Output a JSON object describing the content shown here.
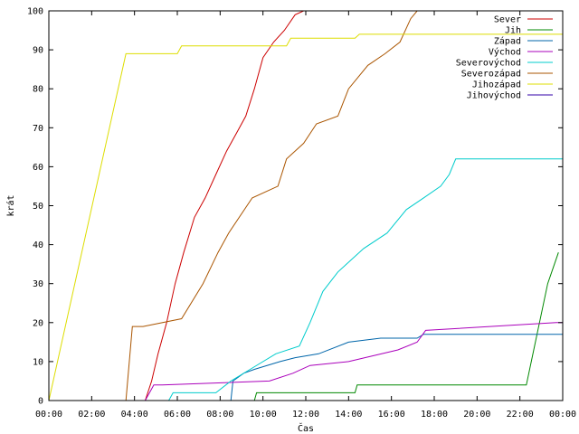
{
  "chart_data": {
    "type": "line",
    "xlabel": "Čas",
    "ylabel": "krát",
    "xlim": [
      0,
      24
    ],
    "ylim": [
      0,
      100
    ],
    "grid": false,
    "legend_position": "top-right",
    "x_ticks": [
      {
        "value": 0,
        "label": "00:00"
      },
      {
        "value": 2,
        "label": "02:00"
      },
      {
        "value": 4,
        "label": "04:00"
      },
      {
        "value": 6,
        "label": "06:00"
      },
      {
        "value": 8,
        "label": "08:00"
      },
      {
        "value": 10,
        "label": "10:00"
      },
      {
        "value": 12,
        "label": "12:00"
      },
      {
        "value": 14,
        "label": "14:00"
      },
      {
        "value": 16,
        "label": "16:00"
      },
      {
        "value": 18,
        "label": "18:00"
      },
      {
        "value": 20,
        "label": "20:00"
      },
      {
        "value": 22,
        "label": "22:00"
      },
      {
        "value": 24,
        "label": "00:00"
      }
    ],
    "y_ticks": [
      {
        "value": 0,
        "label": "0"
      },
      {
        "value": 10,
        "label": "10"
      },
      {
        "value": 20,
        "label": "20"
      },
      {
        "value": 30,
        "label": "30"
      },
      {
        "value": 40,
        "label": "40"
      },
      {
        "value": 50,
        "label": "50"
      },
      {
        "value": 60,
        "label": "60"
      },
      {
        "value": 70,
        "label": "70"
      },
      {
        "value": 80,
        "label": "80"
      },
      {
        "value": 90,
        "label": "90"
      },
      {
        "value": 100,
        "label": "100"
      }
    ],
    "series": [
      {
        "name": "Sever",
        "color": "#cc0000",
        "x": [
          4.5,
          4.8,
          5.1,
          5.5,
          5.9,
          6.3,
          6.8,
          7.3,
          7.8,
          8.3,
          8.8,
          9.2,
          9.6,
          10.0,
          10.5,
          11.0,
          11.5,
          11.9
        ],
        "y": [
          0,
          5,
          12,
          20,
          30,
          38,
          47,
          52,
          58,
          64,
          69,
          73,
          80,
          88,
          92,
          95,
          99,
          100
        ]
      },
      {
        "name": "Jih",
        "color": "#008800",
        "x": [
          9.6,
          9.7,
          14.3,
          14.4,
          22.3,
          23.3,
          23.8
        ],
        "y": [
          0,
          2,
          2,
          4,
          4,
          30,
          38
        ]
      },
      {
        "name": "Západ",
        "color": "#0066aa",
        "x": [
          8.5,
          8.6,
          9.1,
          9.6,
          10.8,
          11.5,
          12.6,
          14.0,
          15.5,
          17.2,
          17.5,
          24.0
        ],
        "y": [
          0,
          5,
          7,
          8,
          10,
          11,
          12,
          15,
          16,
          16,
          17,
          17
        ]
      },
      {
        "name": "Východ",
        "color": "#aa00bb",
        "x": [
          4.5,
          4.9,
          5.3,
          10.3,
          11.4,
          12.2,
          14.0,
          16.3,
          17.2,
          17.6,
          23.7,
          24.0
        ],
        "y": [
          0,
          4,
          4,
          5,
          7,
          9,
          10,
          13,
          15,
          18,
          20,
          20
        ]
      },
      {
        "name": "Severovýchod",
        "color": "#00cccc",
        "x": [
          5.6,
          5.8,
          7.8,
          8.5,
          9.4,
          10.6,
          11.7,
          12.2,
          12.8,
          13.5,
          14.7,
          15.8,
          16.7,
          17.5,
          18.3,
          18.7,
          19.0,
          24.0
        ],
        "y": [
          0,
          2,
          2,
          5,
          8,
          12,
          14,
          20,
          28,
          33,
          39,
          43,
          49,
          52,
          55,
          58,
          62,
          62
        ]
      },
      {
        "name": "Severozápad",
        "color": "#aa5500",
        "x": [
          3.6,
          3.9,
          4.4,
          6.2,
          7.2,
          7.9,
          8.4,
          9.5,
          10.7,
          11.1,
          11.9,
          12.5,
          13.5,
          14.0,
          14.9,
          15.7,
          16.4,
          16.9,
          17.2
        ],
        "y": [
          0,
          19,
          19,
          21,
          30,
          38,
          43,
          52,
          55,
          62,
          66,
          71,
          73,
          80,
          86,
          89,
          92,
          98,
          100
        ]
      },
      {
        "name": "Jihozápad",
        "color": "#dddd00",
        "x": [
          0.0,
          3.6,
          6.0,
          6.2,
          11.1,
          11.3,
          14.3,
          14.5,
          24.0
        ],
        "y": [
          0,
          89,
          89,
          91,
          91,
          93,
          93,
          94,
          94
        ]
      },
      {
        "name": "Jihovýchod",
        "color": "#3300aa",
        "x": [],
        "y": []
      }
    ]
  }
}
